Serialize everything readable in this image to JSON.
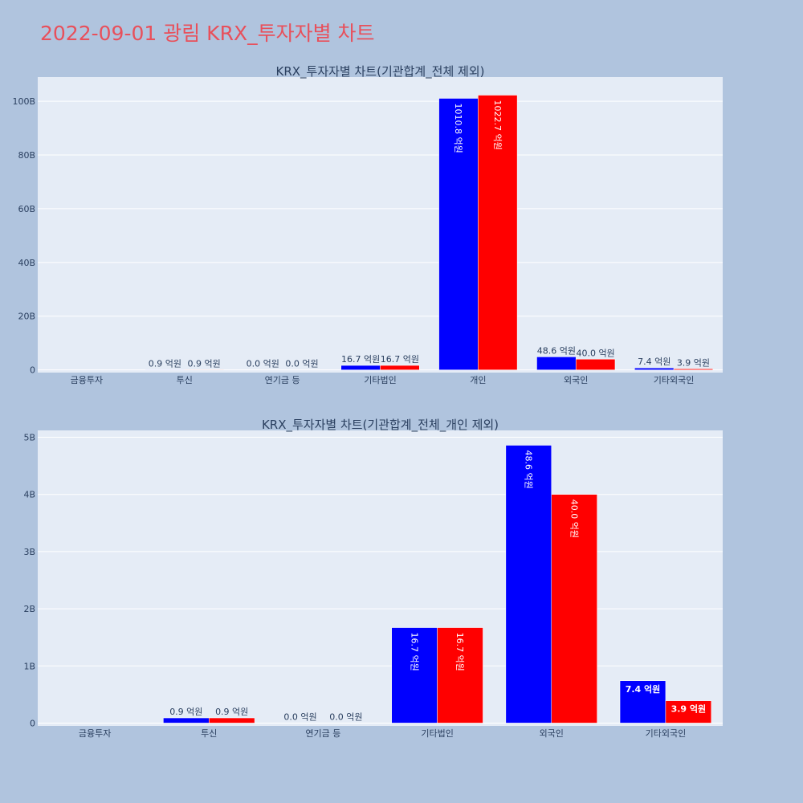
{
  "page": {
    "title": "2022-09-01 광림 KRX_투자자별 차트"
  },
  "colors": {
    "background": "#b0c4de",
    "plot_bg": "#e5ecf6",
    "series_buy": "#0000ff",
    "series_sell": "#ff0000",
    "title": "#e8505b"
  },
  "chart_data": [
    {
      "type": "bar",
      "title": "KRX_투자자별 차트(기관합계_전체 제외)",
      "categories": [
        "금융투자",
        "투신",
        "연기금 등",
        "기타법인",
        "개인",
        "외국인",
        "기타외국인"
      ],
      "series": [
        {
          "values": [
            0,
            0.09,
            0.0,
            1.67,
            101.08,
            4.86,
            0.74
          ],
          "labels": [
            "",
            "0.9 억원",
            "0.0 억원",
            "16.7 억원",
            "1010.8 억원",
            "48.6 억원",
            "7.4 억원"
          ]
        },
        {
          "values": [
            0,
            0.09,
            0.0,
            1.67,
            102.27,
            4.0,
            0.39
          ],
          "labels": [
            "",
            "0.9 억원",
            "0.0 억원",
            "16.7 억원",
            "1022.7 억원",
            "40.0 억원",
            "3.9 억원"
          ]
        }
      ],
      "yticks": [
        0,
        20,
        40,
        60,
        80,
        100
      ],
      "ytick_labels": [
        "0",
        "20B",
        "40B",
        "60B",
        "80B",
        "100B"
      ],
      "ylim": [
        -1,
        109
      ]
    },
    {
      "type": "bar",
      "title": "KRX_투자자별 차트(기관합계_전체_개인 제외)",
      "categories": [
        "금융투자",
        "투신",
        "연기금 등",
        "기타법인",
        "외국인",
        "기타외국인"
      ],
      "series": [
        {
          "values": [
            0,
            0.09,
            0.0,
            1.67,
            4.86,
            0.74
          ],
          "labels": [
            "",
            "0.9 억원",
            "0.0 억원",
            "16.7 억원",
            "48.6 억원",
            "7.4 억원"
          ]
        },
        {
          "values": [
            0,
            0.09,
            0.0,
            1.67,
            4.0,
            0.39
          ],
          "labels": [
            "",
            "0.9 억원",
            "0.0 억원",
            "16.7 억원",
            "40.0 억원",
            "3.9 억원"
          ]
        }
      ],
      "yticks": [
        0,
        1,
        2,
        3,
        4,
        5
      ],
      "ytick_labels": [
        "0",
        "1B",
        "2B",
        "3B",
        "4B",
        "5B"
      ],
      "ylim": [
        -0.05,
        5.12
      ]
    }
  ]
}
